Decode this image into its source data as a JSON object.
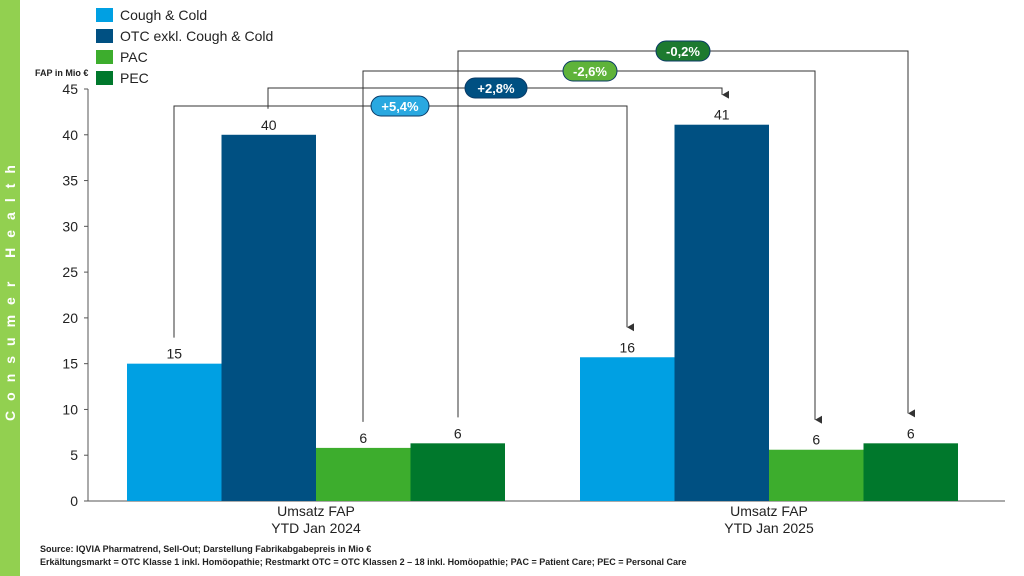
{
  "sidebar": {
    "label": "Consumer Health",
    "color": "#92d050"
  },
  "chart_data": {
    "type": "bar",
    "title": "",
    "ylabel": "FAP in Mio €",
    "xlabel": "",
    "ylim": [
      0,
      45
    ],
    "yticks": [
      0,
      5,
      10,
      15,
      20,
      25,
      30,
      35,
      40,
      45
    ],
    "grid": false,
    "legend_position": "top-left",
    "categories": [
      [
        "Umsatz FAP",
        "YTD Jan 2024"
      ],
      [
        "Umsatz FAP",
        "YTD Jan 2025"
      ]
    ],
    "series": [
      {
        "name": "Cough & Cold",
        "color": "#00a0e3",
        "values": [
          15,
          15.7
        ],
        "labels": [
          "15",
          "16"
        ]
      },
      {
        "name": "OTC exkl. Cough & Cold",
        "color": "#005082",
        "values": [
          40,
          41.1
        ],
        "labels": [
          "40",
          "41"
        ]
      },
      {
        "name": "PAC",
        "color": "#3dad2d",
        "values": [
          5.8,
          5.6
        ],
        "labels": [
          "6",
          "6"
        ]
      },
      {
        "name": "PEC",
        "color": "#00782c",
        "values": [
          6.3,
          6.3
        ],
        "labels": [
          "6",
          "6"
        ]
      }
    ],
    "annotations": [
      {
        "text": "-0,2%",
        "series": 3,
        "color": "#1d7a2f"
      },
      {
        "text": "-2,6%",
        "series": 2,
        "color": "#5fb33a"
      },
      {
        "text": "+2,8%",
        "series": 1,
        "color": "#005082"
      },
      {
        "text": "+5,4%",
        "series": 0,
        "color": "#29a8e0"
      }
    ]
  },
  "footer": {
    "source": "Source: IQVIA Pharmatrend, Sell-Out; Darstellung Fabrikabgabepreis in Mio €",
    "note": "Erkältungsmarkt = OTC Klasse 1 inkl. Homöopathie; Restmarkt OTC = OTC Klassen 2 – 18 inkl. Homöopathie; PAC = Patient Care; PEC = Personal Care"
  }
}
